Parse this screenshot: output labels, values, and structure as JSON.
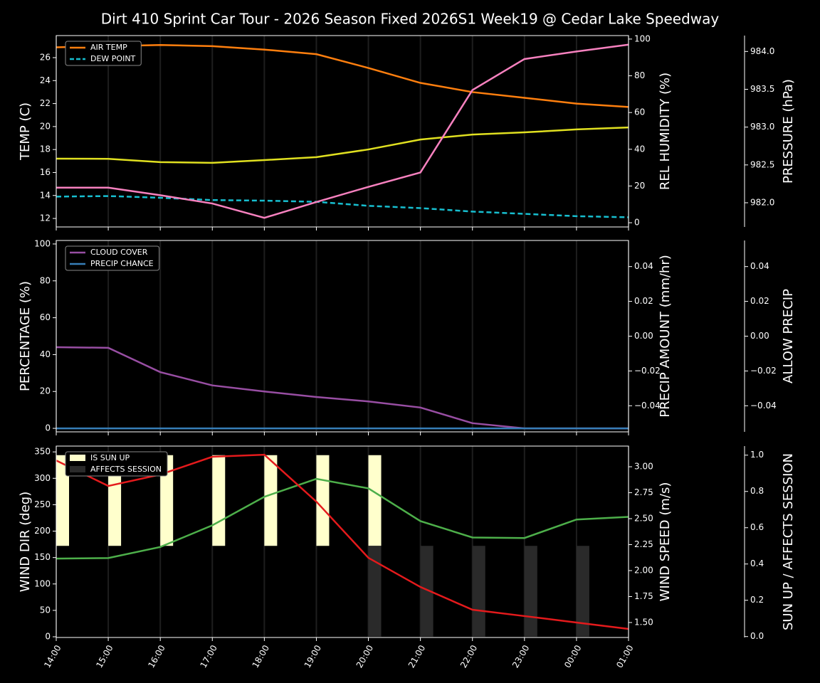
{
  "title": "Dirt 410 Sprint Car Tour - 2026 Season Fixed 2026S1 Week19 @ Cedar Lake Speedway",
  "chart_data": [
    {
      "type": "line",
      "legend": "upper left",
      "grid": true,
      "ylabel": "TEMP (C)",
      "ylabel_color": "#ffffff",
      "ylim": [
        11.26,
        27.92
      ],
      "yticks": [
        12,
        14,
        16,
        18,
        20,
        22,
        24,
        26
      ],
      "y2label": "REL HUMIDITY (%)",
      "y2label_color": "#e0e020",
      "y2lim": [
        -2.3,
        101.9
      ],
      "y2ticks": [
        0,
        20,
        40,
        60,
        80,
        100
      ],
      "y3label": "PRESSURE (hPa)",
      "y3label_color": "#f781bf",
      "y3lim": [
        981.68,
        984.21
      ],
      "y3ticks": [
        {
          "value": 982,
          "label": "982.0"
        },
        982.5,
        {
          "value": 983,
          "label": "983.0"
        },
        983.5,
        {
          "value": 984,
          "label": "984.0"
        }
      ],
      "series": [
        {
          "name": "AIR TEMP",
          "color": "#ff7f0e",
          "axis": "y",
          "in_legend": true,
          "values": [
            26.9,
            27.0,
            27.1,
            27.0,
            26.7,
            26.3,
            25.1,
            23.8,
            23.0,
            22.5,
            22.0,
            21.7
          ]
        },
        {
          "name": "DEW POINT",
          "color": "#17becf",
          "axis": "y",
          "style": "dashed",
          "in_legend": true,
          "values": [
            13.9,
            13.95,
            13.8,
            13.6,
            13.55,
            13.45,
            13.1,
            12.9,
            12.6,
            12.4,
            12.2,
            12.1
          ]
        },
        {
          "color": "#e0e020",
          "axis": "y2",
          "values": [
            34.9,
            34.8,
            33.0,
            32.6,
            34.1,
            35.7,
            39.9,
            45.3,
            48.0,
            49.2,
            50.8,
            51.9
          ]
        },
        {
          "color": "#f781bf",
          "axis": "y3",
          "values": [
            982.2,
            982.2,
            982.1,
            981.99,
            981.8,
            982.01,
            982.21,
            982.4,
            983.49,
            983.9,
            984.0,
            984.09
          ]
        }
      ]
    },
    {
      "type": "line",
      "legend": "upper left",
      "grid": true,
      "ylabel": "PERCENTAGE (%)",
      "ylabel_color": "#ffffff",
      "ylim": [
        -1.9,
        101.9
      ],
      "yticks": [
        0,
        20,
        40,
        60,
        80,
        100
      ],
      "y2label": "PRECIP AMOUNT (mm/hr)",
      "y2label_color": "#a0522d",
      "y2lim": [
        -0.055,
        0.055
      ],
      "y2ticks": [
        {
          "value": -0.04,
          "label": "−0.04"
        },
        {
          "value": -0.02,
          "label": "−0.02"
        },
        {
          "value": 0,
          "label": "0.00"
        },
        0.02,
        0.04
      ],
      "y3label": "ALLOW PRECIP",
      "y3label_color": "#ffffff",
      "y3lim": [
        -0.055,
        0.055
      ],
      "y3ticks": [
        {
          "value": -0.04,
          "label": "−0.04"
        },
        {
          "value": -0.02,
          "label": "−0.02"
        },
        {
          "value": 0,
          "label": "0.00"
        },
        0.02,
        0.04
      ],
      "series": [
        {
          "name": "CLOUD COVER",
          "color": "#984ea3",
          "axis": "y",
          "in_legend": true,
          "values": [
            44,
            43.7,
            30.5,
            23.3,
            20,
            17,
            14.6,
            11.3,
            2.8,
            0,
            0,
            0
          ]
        },
        {
          "name": "PRECIP CHANCE",
          "color": "#377eb8",
          "axis": "y",
          "in_legend": true,
          "values": [
            0,
            0,
            0,
            0,
            0,
            0,
            0,
            0,
            0,
            0,
            0,
            0
          ]
        }
      ]
    },
    {
      "type": "line",
      "legend": "upper left",
      "grid": true,
      "categories": [
        "14:00",
        "15:00",
        "16:00",
        "17:00",
        "18:00",
        "19:00",
        "20:00",
        "21:00",
        "22:00",
        "23:00",
        "00:00",
        "01:00"
      ],
      "ylabel": "WIND DIR (deg)",
      "ylabel_color": "#4daf4a",
      "ylim": [
        -1.3,
        361
      ],
      "yticks": [
        0,
        50,
        100,
        150,
        200,
        250,
        300,
        350
      ],
      "y2label": "WIND SPEED (m/s)",
      "y2label_color": "#e41a1c",
      "y2lim": [
        1.356,
        3.199
      ],
      "y2ticks": [
        {
          "value": 1.5,
          "label": "1.50"
        },
        1.75,
        {
          "value": 2,
          "label": "2.00"
        },
        2.25,
        {
          "value": 2.5,
          "label": "2.50"
        },
        2.75,
        {
          "value": 3,
          "label": "3.00"
        }
      ],
      "y3label": "SUN UP / AFFECTS SESSION",
      "y3label_color": "#ffffff",
      "y3lim": [
        -0.005,
        1.05
      ],
      "y3ticks": [
        {
          "value": 0,
          "label": "0.0"
        },
        0.2,
        0.4,
        0.6,
        0.8,
        {
          "value": 1,
          "label": "1.0"
        }
      ],
      "series": [
        {
          "name": "IS SUN UP",
          "type": "bar",
          "color": "#ffffcc",
          "axis": "y3",
          "bar_base": 0.5,
          "in_legend": true,
          "values": [
            1,
            1,
            1,
            1,
            1,
            1,
            1,
            0,
            0,
            0,
            0,
            0
          ]
        },
        {
          "name": "AFFECTS SESSION",
          "type": "bar",
          "color": "#2a2a2a",
          "axis": "y3",
          "in_legend": true,
          "values": [
            0,
            0,
            0,
            0,
            0,
            0,
            0.5,
            0.5,
            0.5,
            0.5,
            0.5,
            0
          ]
        },
        {
          "color": "#4daf4a",
          "axis": "y",
          "values": [
            148,
            149,
            170,
            211,
            265,
            299,
            281,
            219,
            188,
            187,
            222,
            227
          ]
        },
        {
          "color": "#e41a1c",
          "axis": "y2",
          "values": [
            3.06,
            2.815,
            2.925,
            3.096,
            3.116,
            2.664,
            2.123,
            1.842,
            1.623,
            1.562,
            1.5,
            1.438
          ]
        }
      ]
    }
  ]
}
